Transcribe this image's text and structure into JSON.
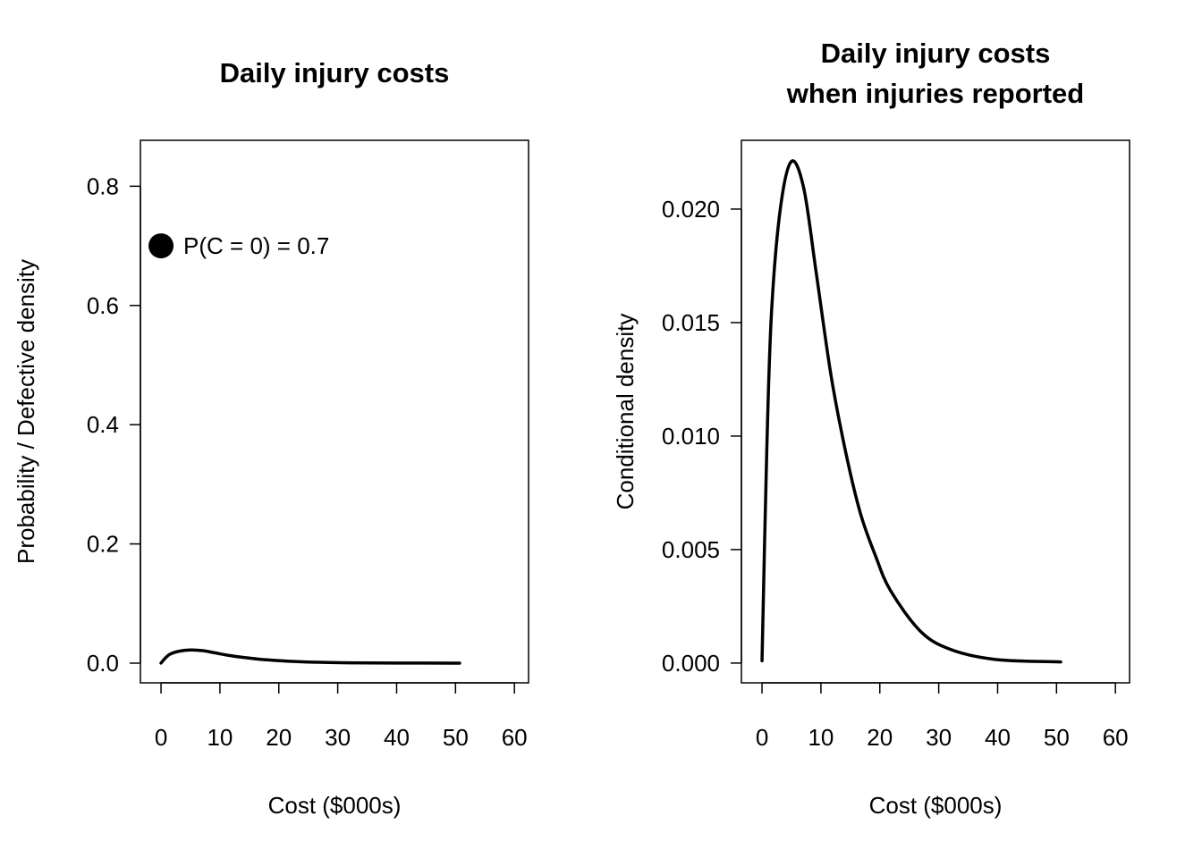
{
  "chart_data": [
    {
      "type": "line",
      "title": [
        "Daily injury costs"
      ],
      "xlabel": "Cost ($000s)",
      "ylabel": "Probability / Defective density",
      "xlim": [
        -3.5,
        62.4
      ],
      "ylim": [
        -0.033,
        0.877
      ],
      "xticks": [
        0,
        10,
        20,
        30,
        40,
        50,
        60
      ],
      "yticks": [
        "0.0",
        "0.2",
        "0.4",
        "0.6",
        "0.8"
      ],
      "yticks_values": [
        0,
        0.2,
        0.4,
        0.6,
        0.8
      ],
      "grid": false,
      "point": {
        "x": 0,
        "y": 0.7,
        "label": "P(C = 0) = 0.7"
      },
      "x": [
        0,
        0.8,
        1.6,
        3.1,
        5.0,
        7.1,
        9.2,
        11.7,
        14.2,
        16.7,
        19.3,
        21.8,
        26.9,
        32,
        39.6,
        50.7
      ],
      "y": [
        0.0001,
        0.0093,
        0.0154,
        0.02,
        0.0221,
        0.0209,
        0.0172,
        0.0127,
        0.0093,
        0.0066,
        0.0047,
        0.0032,
        0.0014,
        0.0006,
        0.00016,
        5e-05
      ]
    },
    {
      "type": "line",
      "title": [
        "Daily injury costs",
        "when injuries reported"
      ],
      "xlabel": "Cost ($000s)",
      "ylabel": "Conditional density",
      "xlim": [
        -3.5,
        62.4
      ],
      "ylim": [
        -0.00087,
        0.02303
      ],
      "xticks": [
        0,
        10,
        20,
        30,
        40,
        50,
        60
      ],
      "yticks": [
        "0.000",
        "0.005",
        "0.010",
        "0.015",
        "0.020"
      ],
      "yticks_values": [
        0,
        0.005,
        0.01,
        0.015,
        0.02
      ],
      "grid": false,
      "x": [
        0,
        0.8,
        1.6,
        3.1,
        5.0,
        7.1,
        9.2,
        11.7,
        14.2,
        16.7,
        19.3,
        21.8,
        26.9,
        32,
        39.6,
        50.7
      ],
      "y": [
        0.0001,
        0.0093,
        0.0154,
        0.02,
        0.0221,
        0.0209,
        0.0172,
        0.0127,
        0.0093,
        0.0066,
        0.0047,
        0.0032,
        0.0014,
        0.0006,
        0.00016,
        5e-05
      ]
    }
  ]
}
